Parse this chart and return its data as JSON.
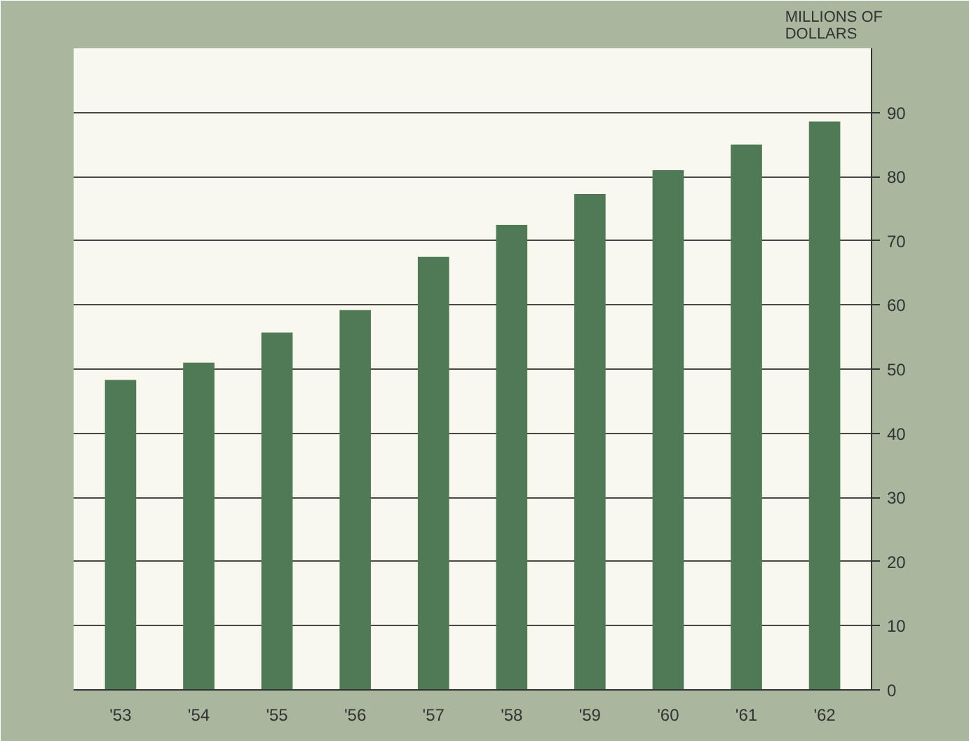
{
  "chart_data": {
    "type": "bar",
    "ylabel": "MILLIONS OF DOLLARS",
    "categories": [
      "'53",
      "'54",
      "'55",
      "'56",
      "'57",
      "'58",
      "'59",
      "'60",
      "'61",
      "'62"
    ],
    "values": [
      48.3,
      51,
      55.7,
      59.2,
      67.5,
      72.5,
      77.3,
      81,
      85,
      88.6
    ],
    "color": "#4f7a55",
    "ylim": [
      0,
      100
    ],
    "yticks": [
      0,
      10,
      20,
      30,
      40,
      50,
      60,
      70,
      80,
      90
    ],
    "grid": "y"
  }
}
